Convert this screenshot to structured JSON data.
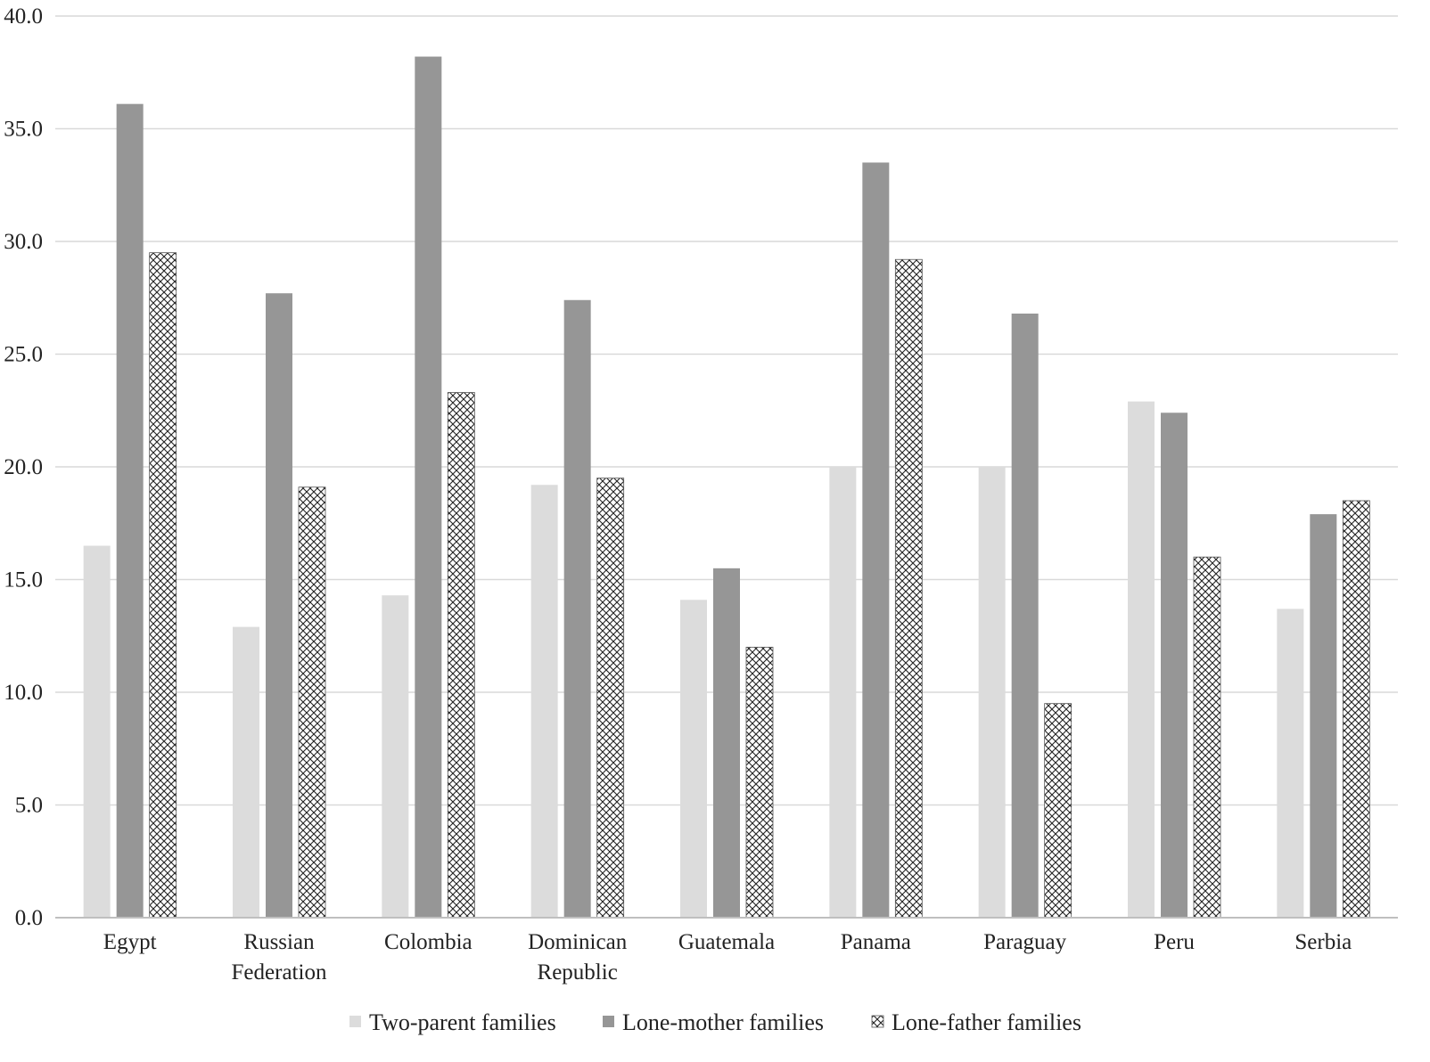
{
  "chart_data": {
    "type": "bar",
    "title": "",
    "xlabel": "",
    "ylabel": "",
    "ylim": [
      0,
      40
    ],
    "yticks": [
      "0.0",
      "5.0",
      "10.0",
      "15.0",
      "20.0",
      "25.0",
      "30.0",
      "35.0",
      "40.0"
    ],
    "grid": "horizontal",
    "legend_position": "bottom",
    "categories": [
      [
        "Egypt"
      ],
      [
        "Russian",
        "Federation"
      ],
      [
        "Colombia"
      ],
      [
        "Dominican",
        "Republic"
      ],
      [
        "Guatemala"
      ],
      [
        "Panama"
      ],
      [
        "Paraguay"
      ],
      [
        "Peru"
      ],
      [
        "Serbia"
      ]
    ],
    "series": [
      {
        "name": "Two-parent families",
        "color": "#dcdcdc",
        "pattern": "solid",
        "values": [
          16.5,
          12.9,
          14.3,
          19.2,
          14.1,
          20.0,
          20.0,
          22.9,
          13.7
        ]
      },
      {
        "name": "Lone-mother families",
        "color": "#969696",
        "pattern": "solid",
        "values": [
          36.1,
          27.7,
          38.2,
          27.4,
          15.5,
          33.5,
          26.8,
          22.4,
          17.9
        ]
      },
      {
        "name": "Lone-father families",
        "color": "#ffffff",
        "pattern": "crosshatch",
        "values": [
          29.5,
          19.1,
          23.3,
          19.5,
          12.0,
          29.2,
          9.5,
          16.0,
          18.5
        ]
      }
    ]
  }
}
